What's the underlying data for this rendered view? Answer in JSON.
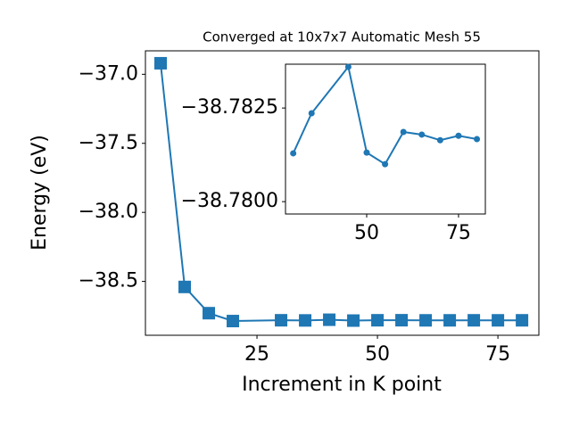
{
  "chart_data": [
    {
      "type": "line",
      "title": "Converged at 10x7x7 Automatic Mesh 55",
      "xlabel": "Increment in K point",
      "ylabel": "Energy (eV)",
      "x": [
        5,
        10,
        15,
        20,
        30,
        35,
        40,
        45,
        50,
        55,
        60,
        65,
        70,
        75,
        80
      ],
      "series": [
        {
          "color": "#1f77b4",
          "marker": "square",
          "values": [
            -36.92,
            -38.54,
            -38.73,
            -38.787,
            -38.7813,
            -38.7824,
            -38.7775,
            -38.7836,
            -38.7813,
            -38.781,
            -38.7819,
            -38.7818,
            -38.7816,
            -38.7818,
            -38.7817
          ]
        }
      ],
      "xlim": [
        1.85,
        83.5
      ],
      "ylim": [
        -38.89,
        -36.83
      ],
      "xticks": [
        25,
        50,
        75
      ],
      "yticks": [
        {
          "value": -38.5,
          "label": "−38.5"
        },
        {
          "value": -38.0,
          "label": "−38.0"
        },
        {
          "value": -37.5,
          "label": "−37.5"
        },
        {
          "value": -37.0,
          "label": "−37.0"
        }
      ]
    },
    {
      "type": "line",
      "x": [
        30,
        35,
        45,
        50,
        55,
        60,
        65,
        70,
        75,
        80
      ],
      "series": [
        {
          "color": "#1f77b4",
          "marker": "circle",
          "values": [
            -38.78129,
            -38.78236,
            -38.7836,
            -38.78131,
            -38.781,
            -38.78186,
            -38.78179,
            -38.78164,
            -38.78176,
            -38.78167
          ]
        }
      ],
      "xlim": [
        27.9,
        82.3
      ],
      "ylim": [
        -38.77967,
        -38.78367
      ],
      "xticks": [
        50,
        75
      ],
      "yticks": [
        {
          "value": -38.78,
          "label": "−38.7800"
        },
        {
          "value": -38.7825,
          "label": "−38.7825"
        }
      ]
    }
  ]
}
